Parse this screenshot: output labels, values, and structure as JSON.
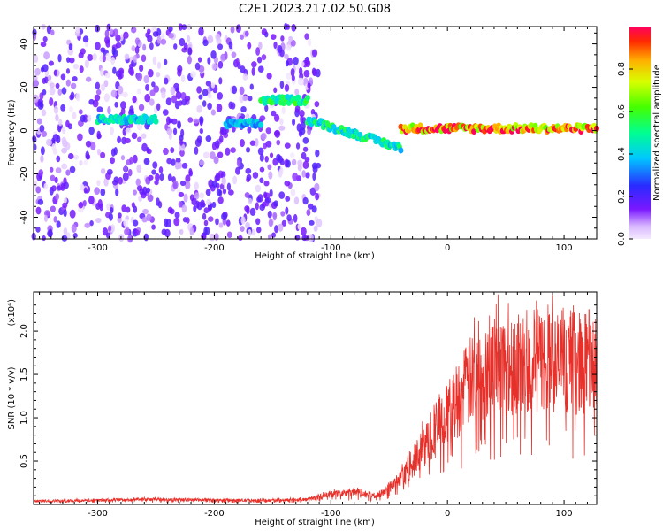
{
  "title": "C2E1.2023.217.02.50.G08",
  "chart_data": [
    {
      "type": "heatmap",
      "xlabel": "Height of straight line (km)",
      "ylabel": "Frequency (Hz)",
      "xlim": [
        -355,
        128
      ],
      "ylim": [
        -50,
        48
      ],
      "x_ticks": [
        -300,
        -200,
        -100,
        0,
        100
      ],
      "x_tick_labels": [
        "-300",
        "-200",
        "-100",
        "0",
        "100"
      ],
      "y_ticks": [
        -40,
        -20,
        0,
        20,
        40
      ],
      "y_tick_labels": [
        "-40",
        "-20",
        "0",
        "20",
        "40"
      ],
      "colorbar": {
        "label": "Normalized spectral amplitude",
        "range": [
          0.0,
          1.0
        ],
        "ticks": [
          0.0,
          0.2,
          0.4,
          0.6,
          0.8
        ],
        "tick_labels": [
          "0.0",
          "0.2",
          "0.4",
          "0.6",
          "0.8"
        ]
      },
      "features": [
        {
          "segment": "noise-left",
          "x_range": [
            -355,
            -110
          ],
          "freq_range": [
            -50,
            48
          ],
          "amplitude": 0.15
        },
        {
          "segment": "ridge-1",
          "x_range": [
            -300,
            -250
          ],
          "freq": 5,
          "amplitude": 0.45
        },
        {
          "segment": "ridge-2",
          "x_range": [
            -190,
            -160
          ],
          "freq": 3,
          "amplitude": 0.4
        },
        {
          "segment": "ridge-3",
          "x_range": [
            -160,
            -120
          ],
          "freq": 14,
          "amplitude": 0.55
        },
        {
          "segment": "ridge-4",
          "x_range": [
            -120,
            -40
          ],
          "freq_start": 5,
          "freq_end": -8,
          "amplitude": 0.5
        },
        {
          "segment": "ridge-5",
          "x_range": [
            -40,
            128
          ],
          "freq": 1,
          "amplitude": 0.9
        }
      ]
    },
    {
      "type": "line",
      "xlabel": "Height of straight line (km)",
      "ylabel": "SNR (10 * v/v)",
      "y_multiplier": "(x10⁴)",
      "xlim": [
        -355,
        128
      ],
      "ylim": [
        0,
        2.45
      ],
      "x_ticks": [
        -300,
        -200,
        -100,
        0,
        100
      ],
      "x_tick_labels": [
        "-300",
        "-200",
        "-100",
        "0",
        "100"
      ],
      "y_ticks": [
        0.5,
        1.0,
        1.5,
        2.0
      ],
      "y_tick_labels": [
        "0.5",
        "1.0",
        "1.5",
        "2.0"
      ],
      "series": [
        {
          "color": "#e8302a",
          "x": [
            -355,
            -300,
            -250,
            -200,
            -150,
            -120,
            -100,
            -80,
            -60,
            -40,
            -30,
            -20,
            -10,
            0,
            10,
            20,
            30,
            40,
            60,
            80,
            100,
            128
          ],
          "y": [
            0.04,
            0.05,
            0.06,
            0.05,
            0.05,
            0.06,
            0.12,
            0.15,
            0.1,
            0.3,
            0.5,
            0.7,
            0.9,
            1.1,
            1.3,
            1.5,
            1.6,
            1.7,
            1.7,
            1.75,
            1.7,
            1.75
          ]
        }
      ]
    }
  ]
}
